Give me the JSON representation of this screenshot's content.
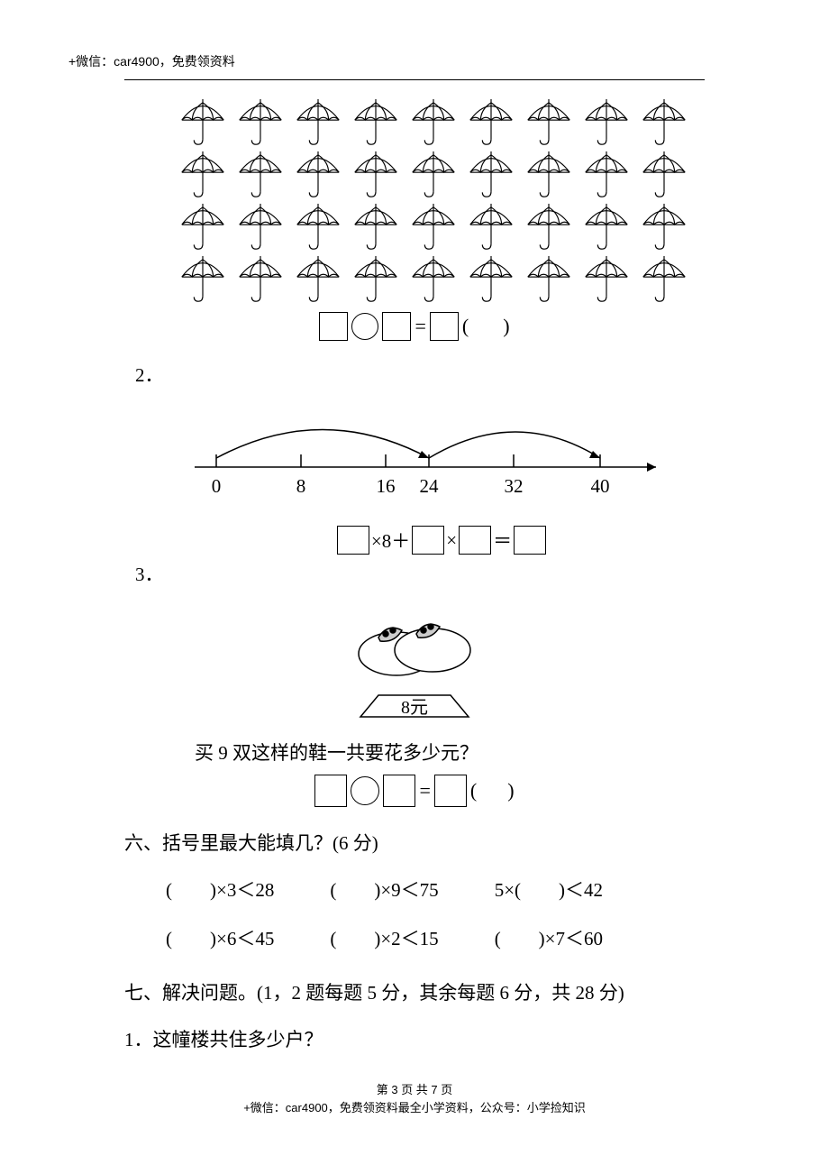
{
  "header": "+微信：car4900，免费领资料",
  "umbrella_grid": {
    "rows": 4,
    "cols": 9,
    "stroke": "#000000",
    "fill": "#ffffff"
  },
  "equation1": {
    "equals": "=",
    "paren_open": "(",
    "paren_close": ")"
  },
  "q2_label": "2．",
  "numberline": {
    "ticks": [
      "0",
      "8",
      "16",
      "24",
      "32",
      "40"
    ],
    "stroke": "#000000",
    "arc_count": 2
  },
  "nl_equation": {
    "op1": "×8＋",
    "op2": "×",
    "eq": "＝"
  },
  "q3_label": "3．",
  "shoes": {
    "price_label": "8元",
    "stroke": "#000000"
  },
  "q3_text": "买 9 双这样的鞋一共要花多少元？",
  "equation3": {
    "equals": "=",
    "paren_open": "(",
    "paren_close": ")"
  },
  "section6_title": "六、括号里最大能填几？(6 分)",
  "fill_problems_row1": [
    "(　　)×3＜28",
    "(　　)×9＜75",
    "5×(　　)＜42"
  ],
  "fill_problems_row2": [
    "(　　)×6＜45",
    "(　　)×2＜15",
    "(　　)×7＜60"
  ],
  "section7_title": "七、解决问题。(1，2 题每题 5 分，其余每题 6 分，共 28 分)",
  "q7_1": "1．这幢楼共住多少户？",
  "footer_line1": "第 3 页 共 7 页",
  "footer_line2": "+微信：car4900，免费领资料最全小学资料，公众号：小学捡知识"
}
